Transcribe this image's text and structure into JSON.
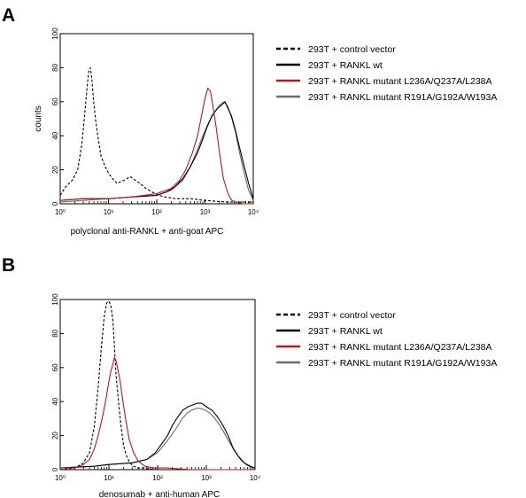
{
  "chart_data": [
    {
      "panel": "A",
      "type": "line",
      "xlabel": "polyclonal anti-RANKL + anti-goat APC",
      "ylabel": "counts",
      "x_scale": "log",
      "xlim": [
        1,
        10000
      ],
      "ylim": [
        0,
        100
      ],
      "x_ticks": [
        "10⁰",
        "10¹",
        "10²",
        "10³",
        "10⁴"
      ],
      "y_ticks": [
        "0",
        "20",
        "40",
        "60",
        "80",
        "100"
      ],
      "grid": false,
      "legend": "right",
      "series": [
        {
          "name": "293T + control vector",
          "color": "#000000",
          "style": "dashed",
          "x": [
            1,
            1.3,
            1.8,
            2.3,
            2.8,
            3.2,
            3.6,
            3.9,
            4.2,
            4.5,
            5,
            5.5,
            6,
            7,
            8.5,
            10,
            12,
            15,
            18,
            22,
            28,
            35,
            45,
            60,
            80,
            110,
            150,
            250,
            500,
            1000,
            3000,
            10000
          ],
          "y": [
            5,
            10,
            14,
            20,
            35,
            52,
            68,
            78,
            80,
            74,
            58,
            48,
            40,
            28,
            22,
            18,
            15,
            12,
            13,
            14,
            16,
            14,
            12,
            9,
            7,
            5,
            4,
            3,
            3,
            2,
            1,
            1
          ]
        },
        {
          "name": "293T + RANKL wt",
          "color": "#000000",
          "style": "solid",
          "x": [
            1,
            3,
            10,
            30,
            100,
            160,
            240,
            350,
            500,
            700,
            900,
            1100,
            1400,
            1800,
            2200,
            2600,
            3000,
            3500,
            4200,
            5000,
            6500,
            8000,
            10000
          ],
          "y": [
            2,
            3,
            3,
            4,
            5,
            7,
            10,
            15,
            22,
            30,
            38,
            45,
            52,
            56,
            58,
            60,
            56,
            52,
            44,
            35,
            22,
            12,
            3
          ]
        },
        {
          "name": "293T + RANKL mutant L236A/Q237A/L238A",
          "color": "#c0161b",
          "style": "solid",
          "x": [
            1,
            3,
            10,
            30,
            100,
            200,
            300,
            400,
            550,
            700,
            850,
            1000,
            1150,
            1300,
            1450,
            1700,
            2000,
            2400,
            3000,
            3600,
            4500,
            6000,
            10000
          ],
          "y": [
            2,
            3,
            3,
            4,
            6,
            9,
            14,
            20,
            30,
            40,
            52,
            62,
            68,
            66,
            58,
            45,
            30,
            15,
            6,
            2,
            1,
            0,
            0
          ]
        },
        {
          "name": "293T + RANKL mutant R191A/G192A/W193A",
          "color": "#6b6b6b",
          "style": "solid",
          "x": [
            1,
            3,
            10,
            30,
            100,
            200,
            350,
            500,
            700,
            900,
            1200,
            1600,
            2000,
            2500,
            3000,
            3600,
            4300,
            5200,
            6500,
            8000,
            10000
          ],
          "y": [
            1,
            2,
            3,
            4,
            5,
            8,
            14,
            22,
            32,
            40,
            48,
            54,
            58,
            60,
            57,
            50,
            42,
            30,
            18,
            8,
            2
          ]
        }
      ]
    },
    {
      "panel": "B",
      "type": "line",
      "xlabel": "denosumab + anti-human APC",
      "ylabel": "",
      "x_scale": "log",
      "xlim": [
        1,
        10000
      ],
      "ylim": [
        0,
        100
      ],
      "x_ticks": [
        "10⁰",
        "10¹",
        "10²",
        "10³",
        "10⁴"
      ],
      "y_ticks": [
        "0",
        "20",
        "40",
        "60",
        "80",
        "100"
      ],
      "grid": false,
      "legend": "right",
      "series": [
        {
          "name": "293T + control vector",
          "color": "#000000",
          "style": "dashed",
          "x": [
            1,
            2,
            3,
            4,
            5,
            6,
            7,
            8,
            9,
            10,
            11,
            12,
            13,
            14,
            16,
            18,
            20,
            23,
            27,
            32,
            40,
            55,
            80,
            150,
            500,
            2000,
            10000
          ],
          "y": [
            0,
            1,
            4,
            10,
            25,
            48,
            72,
            90,
            98,
            99,
            96,
            88,
            72,
            56,
            38,
            24,
            14,
            8,
            4,
            2,
            1,
            1,
            0,
            0,
            0,
            0,
            0
          ]
        },
        {
          "name": "293T + RANKL wt",
          "color": "#000000",
          "style": "solid",
          "x": [
            1,
            5,
            10,
            30,
            60,
            90,
            120,
            160,
            200,
            260,
            330,
            420,
            520,
            650,
            800,
            1000,
            1300,
            1700,
            2200,
            2800,
            3500,
            4500,
            6000,
            8000,
            10000
          ],
          "y": [
            1,
            2,
            3,
            4,
            6,
            10,
            15,
            20,
            26,
            31,
            35,
            37,
            38,
            39,
            39,
            37,
            35,
            31,
            26,
            20,
            13,
            8,
            4,
            2,
            1
          ]
        },
        {
          "name": "293T + RANKL mutant L236A/Q237A/L238A",
          "color": "#c0161b",
          "style": "solid",
          "x": [
            1,
            2,
            3,
            4,
            5,
            6,
            7,
            8,
            9,
            10,
            11,
            12,
            13,
            14,
            15,
            17,
            19,
            22,
            26,
            32,
            40,
            55,
            80,
            150,
            500,
            2000,
            10000
          ],
          "y": [
            1,
            1,
            3,
            6,
            12,
            20,
            28,
            36,
            44,
            52,
            58,
            62,
            66,
            64,
            60,
            52,
            42,
            30,
            18,
            10,
            5,
            2,
            1,
            1,
            0,
            0,
            0
          ]
        },
        {
          "name": "293T + RANKL mutant R191A/G192A/W193A",
          "color": "#6b6b6b",
          "style": "solid",
          "x": [
            1,
            5,
            10,
            30,
            60,
            100,
            140,
            190,
            250,
            320,
            400,
            500,
            620,
            760,
            950,
            1200,
            1500,
            1900,
            2400,
            3000,
            3800,
            5000,
            6500,
            8500,
            10000
          ],
          "y": [
            1,
            2,
            3,
            4,
            6,
            10,
            15,
            20,
            25,
            30,
            33,
            35,
            36,
            36,
            35,
            33,
            30,
            26,
            21,
            16,
            11,
            6,
            3,
            1,
            0
          ]
        }
      ]
    }
  ]
}
